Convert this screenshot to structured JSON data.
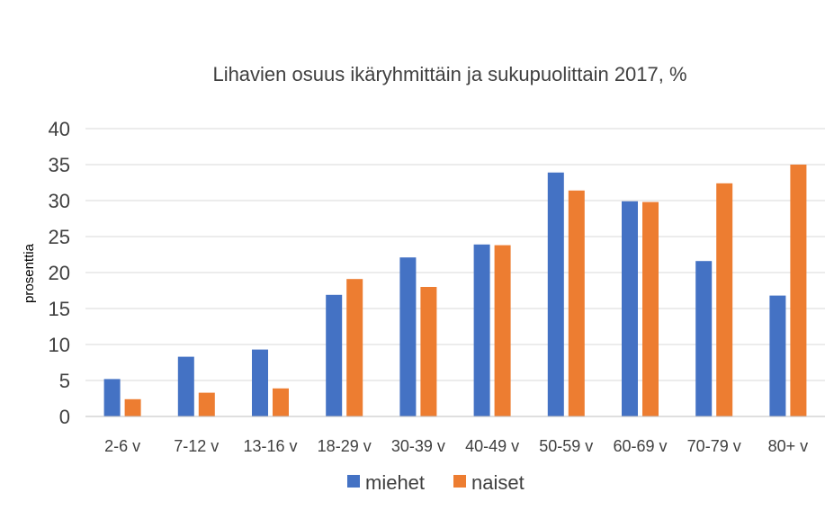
{
  "chart_data": {
    "type": "bar",
    "title": "Lihavien osuus ikäryhmittäin ja sukupuolittain 2017, %",
    "xlabel": "",
    "ylabel": "prosenttia",
    "ylim": [
      0,
      40
    ],
    "yticks": [
      0,
      5,
      10,
      15,
      20,
      25,
      30,
      35,
      40
    ],
    "grid": true,
    "legend": "bottom",
    "categories": [
      "2-6 v",
      "7-12 v",
      "13-16 v",
      "18-29 v",
      "30-39 v",
      "40-49 v",
      "50-59 v",
      "60-69 v",
      "70-79 v",
      "80+ v"
    ],
    "series": [
      {
        "name": "miehet",
        "color": "#4472C4",
        "values": [
          5.2,
          8.3,
          9.3,
          16.9,
          22.1,
          23.9,
          33.9,
          29.9,
          21.6,
          16.8
        ]
      },
      {
        "name": "naiset",
        "color": "#ED7D31",
        "values": [
          2.4,
          3.3,
          3.9,
          19.1,
          18.0,
          23.8,
          31.4,
          29.8,
          32.4,
          35.0
        ]
      }
    ]
  }
}
